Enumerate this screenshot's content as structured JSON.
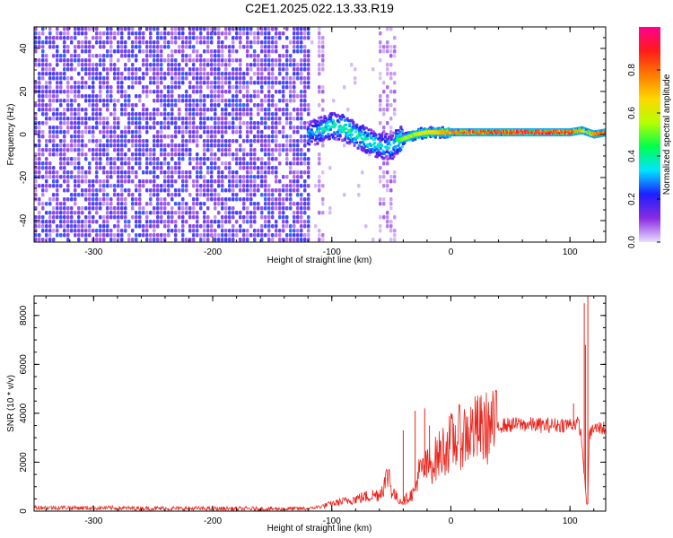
{
  "title": "C2E1.2025.022.13.33.R19",
  "chart_data": [
    {
      "type": "heatmap",
      "xlabel": "Height of straight line (km)",
      "ylabel": "Frequency (Hz)",
      "xlim": [
        -350,
        130
      ],
      "ylim": [
        -50,
        50
      ],
      "xticks": [
        -300,
        -200,
        -100,
        0,
        100
      ],
      "yticks": [
        -40,
        -20,
        0,
        20,
        40
      ],
      "colorbar": {
        "label": "Normalized spectral amplitude",
        "range": [
          0,
          1
        ],
        "ticks": [
          0.0,
          0.2,
          0.4,
          0.6,
          0.8
        ],
        "tick_labels": [
          "0.0",
          "0.2",
          "0.4",
          "0.6",
          "0.8"
        ],
        "colormap": [
          "#e9ddff",
          "#8a2be2",
          "#1e1eff",
          "#00e5ff",
          "#00ff4c",
          "#b6ff00",
          "#ffd700",
          "#ff7a00",
          "#ff1b1b",
          "#ff0090"
        ]
      },
      "noise_region": {
        "x": [
          -350,
          -120
        ],
        "level": [
          0.05,
          0.25
        ]
      },
      "signal_trace": {
        "x": [
          -120,
          -110,
          -100,
          -90,
          -80,
          -70,
          -60,
          -50,
          -45,
          -40,
          -30,
          -20,
          -10,
          0,
          20,
          40,
          60,
          80,
          100,
          110,
          115,
          120,
          130
        ],
        "freq": [
          0,
          2,
          4,
          3,
          0,
          -3,
          -5,
          -6,
          -3,
          -2,
          0,
          1,
          1,
          1,
          1,
          1,
          1,
          1,
          1,
          2,
          1,
          0,
          1
        ],
        "amplitude": [
          0.3,
          0.35,
          0.4,
          0.42,
          0.45,
          0.4,
          0.38,
          0.35,
          0.4,
          0.55,
          0.6,
          0.65,
          0.7,
          0.8,
          0.85,
          0.9,
          0.92,
          0.93,
          0.92,
          0.7,
          0.6,
          0.85,
          0.9
        ]
      }
    },
    {
      "type": "line",
      "xlabel": "Height of straight line (km)",
      "ylabel": "SNR (10 * v/v)",
      "xlim": [
        -350,
        130
      ],
      "ylim": [
        0,
        8800
      ],
      "xticks": [
        -300,
        -200,
        -100,
        0,
        100
      ],
      "yticks": [
        0,
        2000,
        4000,
        6000,
        8000
      ],
      "series": [
        {
          "color": "#e8241c",
          "x": [
            -350,
            -300,
            -250,
            -200,
            -150,
            -120,
            -110,
            -100,
            -90,
            -80,
            -70,
            -60,
            -55,
            -52,
            -50,
            -45,
            -40,
            -30,
            -28,
            -20,
            -15,
            -10,
            -5,
            0,
            10,
            20,
            30,
            40,
            60,
            80,
            100,
            105,
            108,
            110,
            112,
            114,
            115,
            116,
            118,
            120,
            125,
            130
          ],
          "center": [
            150,
            130,
            110,
            100,
            90,
            100,
            180,
            300,
            400,
            500,
            600,
            700,
            1200,
            1600,
            900,
            500,
            400,
            800,
            1500,
            1800,
            2000,
            2300,
            2600,
            2800,
            3100,
            3300,
            3400,
            3500,
            3550,
            3500,
            3550,
            3600,
            3500,
            2800,
            1500,
            300,
            300,
            3000,
            3300,
            3350,
            3400,
            3400
          ]
        }
      ],
      "spikes": [
        {
          "x": -40,
          "y": 3300
        },
        {
          "x": -30,
          "y": 4100
        },
        {
          "x": -22,
          "y": 4200
        },
        {
          "x": -18,
          "y": 3500
        },
        {
          "x": 103,
          "y": 4400
        },
        {
          "x": 112,
          "y": 8500
        },
        {
          "x": 113,
          "y": 6800
        },
        {
          "x": 115,
          "y": 8800
        }
      ]
    }
  ]
}
